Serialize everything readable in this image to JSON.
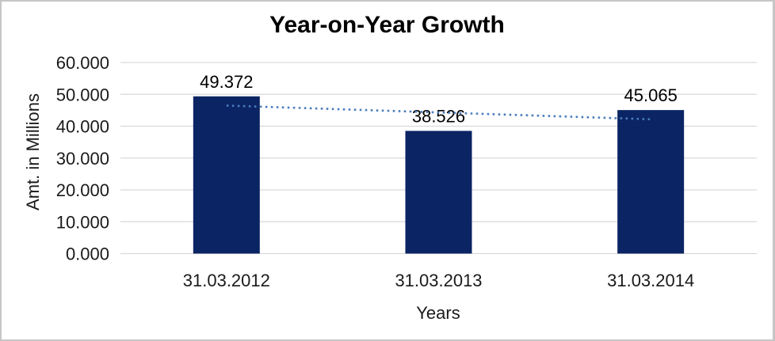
{
  "chart_data": {
    "type": "bar",
    "title": "Year-on-Year Growth",
    "xlabel": "Years",
    "ylabel": "Amt. in Millions",
    "categories": [
      "31.03.2012",
      "31.03.2013",
      "31.03.2014"
    ],
    "values": [
      49.372,
      38.526,
      45.065
    ],
    "value_labels": [
      "49.372",
      "38.526",
      "45.065"
    ],
    "ylim": [
      0,
      60
    ],
    "y_ticks": [
      0,
      10,
      20,
      30,
      40,
      50,
      60
    ],
    "y_tick_labels": [
      "0.000",
      "10.000",
      "20.000",
      "30.000",
      "40.000",
      "50.000",
      "60.000"
    ],
    "grid": true,
    "legend": "none",
    "trendline": {
      "type": "linear",
      "style": "dotted"
    },
    "colors": {
      "bar": "#0b2463",
      "trendline": "#4a7cbc",
      "gridline": "#d9d9d9",
      "text": "#1a1a1a",
      "title": "#000000",
      "frame": "#c6c6c6",
      "background": "#ffffff"
    }
  }
}
